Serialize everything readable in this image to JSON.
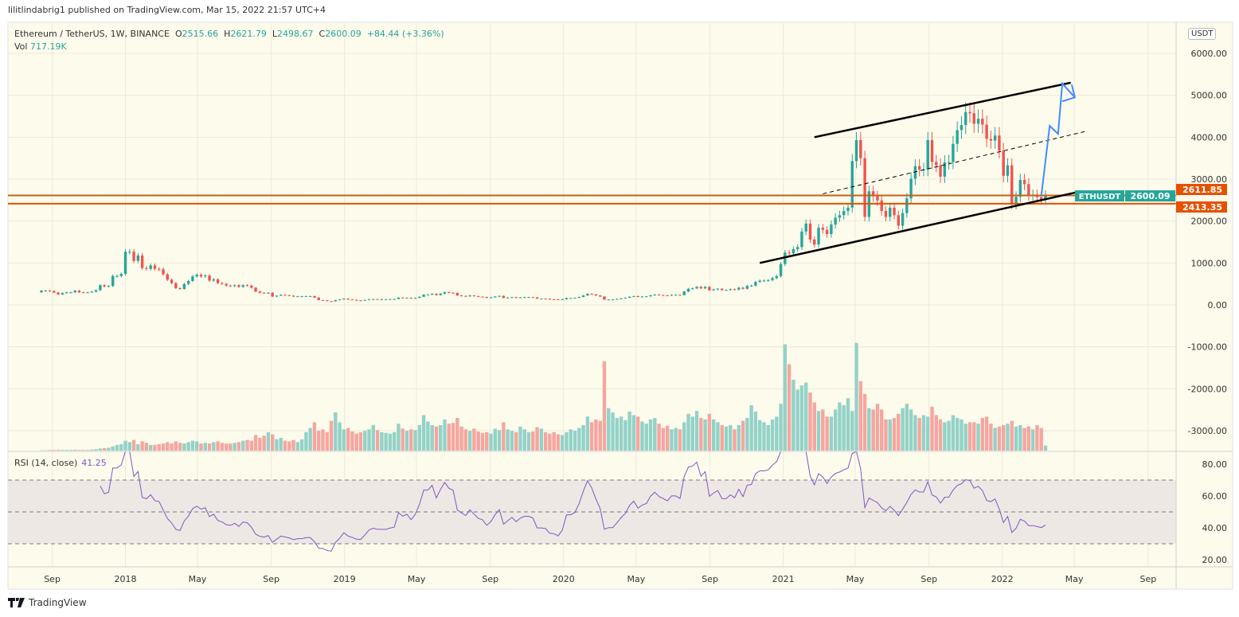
{
  "publisher_line": "lilitlindabrig1 published on TradingView.com, Mar 15, 2022 21:57 UTC+4",
  "legend": {
    "symbol": "Ethereum / TetherUS, 1W, BINANCE",
    "open_label": "O",
    "open": "2515.66",
    "high_label": "H",
    "high": "2621.79",
    "low_label": "L",
    "low": "2498.67",
    "close_label": "C",
    "close": "2600.09",
    "change": "+84.44 (+3.36%)",
    "vol_label": "Vol",
    "vol": "717.19K"
  },
  "rsi_legend": {
    "label": "RSI (14, close)",
    "value": "41.25"
  },
  "currency_badge": "USDT",
  "brand": "TradingView",
  "colors": {
    "up": "#26a69a",
    "down": "#ef5350",
    "vol_up": "#93d2c8",
    "vol_down": "#f5a6a0",
    "level": "#e65100",
    "rsi": "#7e57c2",
    "arrow": "#448aff",
    "background": "#fdfbec"
  },
  "chart_data": {
    "type": "candlestick",
    "interval": "1W",
    "first_week": "2017-08-14",
    "closes": [
      340,
      340,
      330,
      295,
      250,
      283,
      300,
      300,
      340,
      300,
      296,
      300,
      315,
      350,
      470,
      440,
      450,
      690,
      690,
      740,
      1270,
      1270,
      1050,
      1180,
      880,
      860,
      940,
      860,
      850,
      730,
      600,
      520,
      400,
      380,
      500,
      570,
      680,
      720,
      680,
      700,
      580,
      610,
      520,
      500,
      460,
      450,
      470,
      430,
      470,
      460,
      410,
      320,
      290,
      280,
      290,
      200,
      220,
      240,
      230,
      220,
      200,
      205,
      205,
      210,
      210,
      175,
      115,
      110,
      90,
      85,
      115,
      130,
      150,
      128,
      120,
      108,
      107,
      120,
      135,
      140,
      135,
      135,
      135,
      138,
      140,
      175,
      165,
      170,
      155,
      168,
      195,
      245,
      245,
      265,
      235,
      270,
      305,
      290,
      285,
      225,
      215,
      205,
      225,
      210,
      195,
      190,
      170,
      180,
      200,
      215,
      165,
      175,
      185,
      170,
      180,
      185,
      185,
      180,
      150,
      150,
      148,
      133,
      132,
      125,
      135,
      165,
      165,
      170,
      190,
      225,
      265,
      250,
      225,
      200,
      125,
      130,
      130,
      143,
      158,
      170,
      195,
      210,
      190,
      200,
      205,
      230,
      245,
      235,
      230,
      225,
      240,
      240,
      235,
      320,
      385,
      395,
      430,
      395,
      430,
      350,
      370,
      385,
      355,
      355,
      375,
      365,
      410,
      385,
      455,
      460,
      550,
      580,
      580,
      590,
      640,
      685,
      975,
      1250,
      1230,
      1330,
      1380,
      1750,
      1940,
      1560,
      1440,
      1840,
      1790,
      1690,
      1920,
      2080,
      2140,
      2240,
      2320,
      3430,
      3930,
      3500,
      2100,
      2710,
      2590,
      2490,
      2240,
      2100,
      2320,
      2140,
      1890,
      2190,
      2540,
      3010,
      3310,
      3230,
      3230,
      3930,
      3410,
      3330,
      3060,
      3400,
      3410,
      3840,
      4170,
      4290,
      4600,
      4570,
      4320,
      4440,
      4300,
      3960,
      3920,
      4040,
      3680,
      3080,
      3330,
      2400,
      2580,
      2980,
      2880,
      2620,
      2620,
      2570,
      2515.66,
      2600.09
    ],
    "first_open": 300,
    "volumes_millions": [
      0.05,
      0.06,
      0.08,
      0.1,
      0.12,
      0.1,
      0.1,
      0.1,
      0.12,
      0.1,
      0.1,
      0.1,
      0.15,
      0.2,
      0.3,
      0.35,
      0.4,
      0.6,
      0.8,
      0.9,
      1.4,
      1.2,
      1.5,
      0.9,
      1.3,
      1.1,
      0.8,
      0.8,
      0.9,
      1.0,
      1.2,
      1.0,
      1.3,
      1.1,
      1.0,
      1.2,
      1.4,
      1.3,
      1.0,
      1.1,
      1.0,
      1.2,
      1.3,
      1.1,
      1.0,
      1.0,
      1.1,
      1.2,
      1.4,
      1.5,
      1.4,
      2.2,
      1.8,
      2.1,
      2.6,
      2.3,
      1.6,
      1.8,
      1.4,
      1.3,
      1.5,
      1.2,
      1.6,
      2.6,
      3.2,
      4.0,
      2.8,
      3.0,
      2.6,
      4.2,
      5.4,
      4.0,
      3.0,
      3.2,
      2.7,
      2.4,
      2.6,
      2.8,
      3.0,
      3.6,
      2.9,
      2.6,
      2.5,
      2.4,
      2.6,
      3.8,
      3.1,
      2.8,
      3.0,
      2.9,
      3.6,
      5.0,
      4.1,
      3.6,
      3.4,
      3.6,
      4.4,
      3.8,
      3.9,
      4.6,
      3.4,
      3.0,
      2.8,
      3.1,
      2.7,
      2.5,
      2.6,
      2.4,
      3.1,
      2.9,
      4.0,
      3.0,
      2.8,
      2.6,
      3.4,
      3.0,
      2.6,
      2.7,
      3.3,
      3.1,
      2.6,
      2.4,
      2.6,
      2.3,
      2.2,
      2.6,
      3.0,
      2.8,
      3.2,
      3.6,
      4.8,
      4.0,
      4.4,
      4.2,
      12.6,
      6.0,
      5.4,
      4.6,
      4.8,
      4.3,
      5.5,
      5.0,
      4.8,
      4.1,
      3.8,
      4.4,
      4.6,
      3.8,
      3.2,
      3.5,
      3.0,
      3.2,
      3.0,
      4.0,
      5.2,
      4.8,
      5.6,
      4.6,
      4.4,
      5.2,
      4.4,
      4.0,
      3.6,
      3.4,
      3.6,
      3.0,
      3.6,
      4.2,
      4.6,
      6.4,
      5.5,
      4.3,
      4.0,
      3.6,
      4.4,
      4.8,
      6.6,
      15.0,
      12.2,
      10.0,
      8.6,
      9.2,
      9.6,
      8.2,
      6.8,
      5.6,
      5.8,
      4.8,
      4.8,
      5.8,
      6.8,
      6.4,
      7.4,
      5.6,
      15.2,
      9.8,
      8.0,
      6.0,
      5.8,
      6.6,
      5.8,
      4.4,
      4.4,
      4.6,
      5.2,
      6.0,
      6.6,
      5.8,
      5.0,
      4.6,
      5.0,
      4.8,
      6.2,
      5.0,
      4.4,
      4.0,
      4.2,
      5.0,
      4.6,
      4.4,
      3.8,
      4.0,
      4.0,
      3.8,
      4.6,
      4.8,
      3.8,
      3.2,
      3.4,
      3.6,
      3.8,
      4.2,
      3.4,
      3.6,
      3.2,
      3.4,
      3.0,
      3.6,
      3.2,
      0.72
    ],
    "rsi_period": 14,
    "rsi_levels": [
      70,
      50,
      30
    ],
    "price_axis": {
      "range": [
        -3500,
        6600
      ],
      "ticks": [
        "6000.00",
        "5000.00",
        "4000.00",
        "3000.00",
        "2000.00",
        "1000.00",
        "0.00",
        "-1000.00",
        "-2000.00",
        "-3000.00"
      ]
    },
    "rsi_axis": {
      "range": [
        15,
        87
      ],
      "ticks": [
        "80.00",
        "60.00",
        "40.00",
        "20.00"
      ]
    },
    "time_ticks": [
      {
        "label": "Sep",
        "date": "2017-09-01"
      },
      {
        "label": "2018",
        "date": "2018-01-01"
      },
      {
        "label": "May",
        "date": "2018-05-01"
      },
      {
        "label": "Sep",
        "date": "2018-09-01"
      },
      {
        "label": "2019",
        "date": "2019-01-01"
      },
      {
        "label": "May",
        "date": "2019-05-01"
      },
      {
        "label": "Sep",
        "date": "2019-09-01"
      },
      {
        "label": "2020",
        "date": "2020-01-01"
      },
      {
        "label": "May",
        "date": "2020-05-01"
      },
      {
        "label": "Sep",
        "date": "2020-09-01"
      },
      {
        "label": "2021",
        "date": "2021-01-01"
      },
      {
        "label": "May",
        "date": "2021-05-01"
      },
      {
        "label": "Sep",
        "date": "2021-09-01"
      },
      {
        "label": "2022",
        "date": "2022-01-01"
      },
      {
        "label": "May",
        "date": "2022-05-01"
      },
      {
        "label": "Sep",
        "date": "2022-09-01"
      }
    ],
    "price_labels": [
      {
        "text": "2611.85",
        "value": 2611.85,
        "color": "#e65100"
      },
      {
        "text": "2600.09",
        "value": 2600.09,
        "color": "#26a69a",
        "tag": "ETHUSDT"
      },
      {
        "text": "2413.35",
        "value": 2413.35,
        "color": "#e65100"
      }
    ],
    "drawings": {
      "channel_upper": [
        [
          "2021-02-22",
          4000
        ],
        [
          "2022-04-25",
          5300
        ]
      ],
      "channel_lower": [
        [
          "2020-11-23",
          1000
        ],
        [
          "2022-05-09",
          2700
        ]
      ],
      "channel_mid_dashed": [
        [
          "2021-03-08",
          2650
        ],
        [
          "2022-05-23",
          4150
        ]
      ],
      "projection_path": [
        [
          "2022-03-07",
          2600
        ],
        [
          "2022-03-21",
          4270
        ],
        [
          "2022-04-04",
          4080
        ],
        [
          "2022-04-11",
          5280
        ],
        [
          "2022-05-02",
          4950
        ]
      ]
    }
  }
}
